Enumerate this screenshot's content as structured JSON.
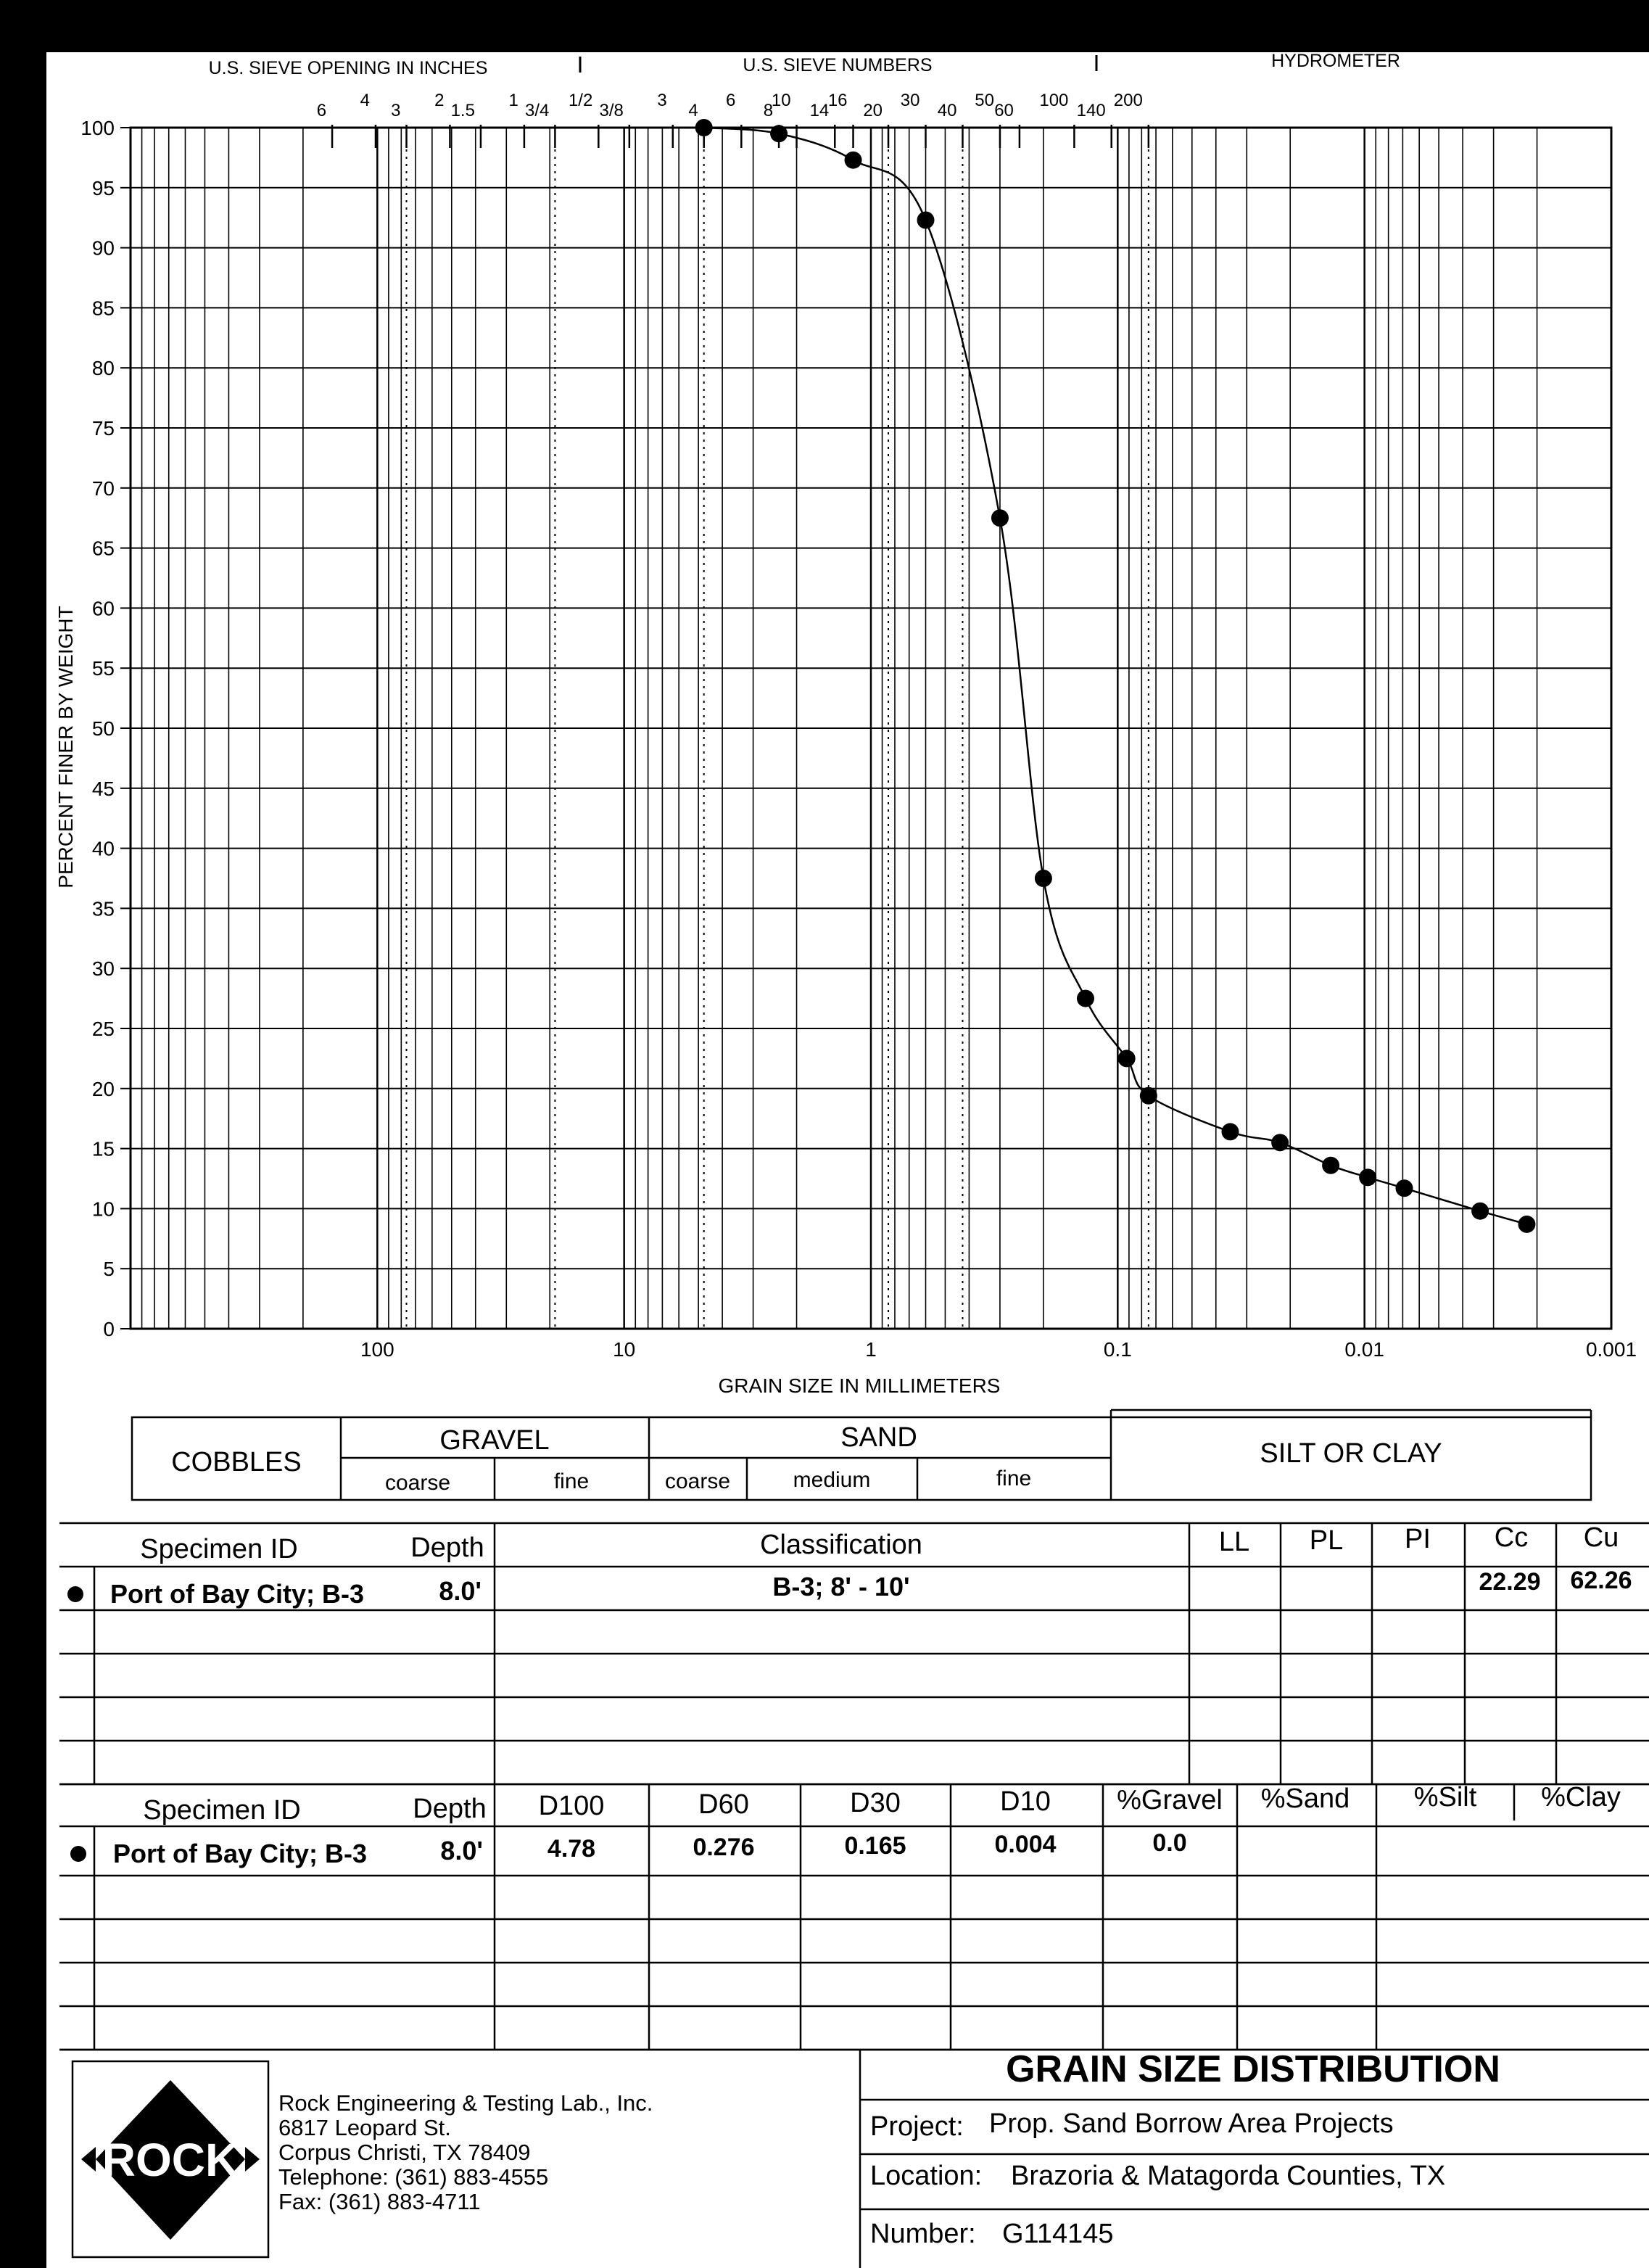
{
  "chart_data": {
    "type": "scatter",
    "x_scale": "log-reversed",
    "xlim": [
      1000,
      0.001
    ],
    "ylim": [
      0,
      100
    ],
    "grid": true,
    "legend": "none",
    "top_labels": {
      "inches_header": "U.S. SIEVE OPENING IN INCHES",
      "numbers_header": "U.S. SIEVE NUMBERS",
      "hydrometer_header": "HYDROMETER",
      "inch_sieves": [
        {
          "label": "6",
          "mm": 152.4
        },
        {
          "label": "4",
          "mm": 101.6
        },
        {
          "label": "3",
          "mm": 76.2
        },
        {
          "label": "2",
          "mm": 50.8
        },
        {
          "label": "1.5",
          "mm": 38.1
        },
        {
          "label": "1",
          "mm": 25.4
        },
        {
          "label": "3/4",
          "mm": 19.05
        },
        {
          "label": "1/2",
          "mm": 12.7
        },
        {
          "label": "3/8",
          "mm": 9.525
        },
        {
          "label": "3",
          "mm": 6.35
        }
      ],
      "number_sieves": [
        {
          "label": "4",
          "mm": 4.75
        },
        {
          "label": "6",
          "mm": 3.35
        },
        {
          "label": "8",
          "mm": 2.36
        },
        {
          "label": "10",
          "mm": 2.0
        },
        {
          "label": "14",
          "mm": 1.4
        },
        {
          "label": "16",
          "mm": 1.18
        },
        {
          "label": "20",
          "mm": 0.85
        },
        {
          "label": "30",
          "mm": 0.6
        },
        {
          "label": "40",
          "mm": 0.425
        },
        {
          "label": "50",
          "mm": 0.3
        },
        {
          "label": "60",
          "mm": 0.25
        },
        {
          "label": "100",
          "mm": 0.15
        },
        {
          "label": "140",
          "mm": 0.106
        },
        {
          "label": "200",
          "mm": 0.075
        }
      ]
    },
    "x_tick_labels": [
      {
        "label": "100",
        "mm": 100
      },
      {
        "label": "10",
        "mm": 10
      },
      {
        "label": "1",
        "mm": 1
      },
      {
        "label": "0.1",
        "mm": 0.1
      },
      {
        "label": "0.01",
        "mm": 0.01
      },
      {
        "label": "0.001",
        "mm": 0.001
      }
    ],
    "y_ticks": [
      0,
      5,
      10,
      15,
      20,
      25,
      30,
      35,
      40,
      45,
      50,
      55,
      60,
      65,
      70,
      75,
      80,
      85,
      90,
      95,
      100
    ],
    "xlabel": "GRAIN SIZE IN MILLIMETERS",
    "ylabel": "PERCENT FINER BY WEIGHT",
    "series": [
      {
        "marker": "filled-circle",
        "color": "#000000",
        "points": [
          {
            "x": 4.75,
            "y": 100.0
          },
          {
            "x": 2.36,
            "y": 99.5
          },
          {
            "x": 1.18,
            "y": 97.3
          },
          {
            "x": 0.6,
            "y": 92.3
          },
          {
            "x": 0.3,
            "y": 67.5
          },
          {
            "x": 0.2,
            "y": 37.5
          },
          {
            "x": 0.135,
            "y": 27.5
          },
          {
            "x": 0.092,
            "y": 22.5
          },
          {
            "x": 0.075,
            "y": 19.4
          },
          {
            "x": 0.035,
            "y": 16.4
          },
          {
            "x": 0.022,
            "y": 15.5
          },
          {
            "x": 0.0137,
            "y": 13.6
          },
          {
            "x": 0.0097,
            "y": 12.6
          },
          {
            "x": 0.0069,
            "y": 11.7
          },
          {
            "x": 0.0034,
            "y": 9.8
          },
          {
            "x": 0.0022,
            "y": 8.7
          }
        ]
      }
    ]
  },
  "classification_bar": {
    "cobbles": "COBBLES",
    "gravel": "GRAVEL",
    "gravel_coarse": "coarse",
    "gravel_fine": "fine",
    "sand": "SAND",
    "sand_coarse": "coarse",
    "sand_medium": "medium",
    "sand_fine": "fine",
    "silt_clay": "SILT OR CLAY"
  },
  "table1": {
    "headers": [
      "Specimen ID",
      "Depth",
      "Classification",
      "LL",
      "PL",
      "PI",
      "Cc",
      "Cu"
    ],
    "row": {
      "specimen": "Port of Bay City; B-3",
      "depth": "8.0'",
      "classification": "B-3; 8' - 10'",
      "ll": "",
      "pl": "",
      "pi": "",
      "cc": "22.29",
      "cu": "62.26"
    }
  },
  "table2": {
    "headers": [
      "Specimen ID",
      "Depth",
      "D100",
      "D60",
      "D30",
      "D10",
      "%Gravel",
      "%Sand",
      "%Silt",
      "%Clay"
    ],
    "row": {
      "specimen": "Port of Bay City; B-3",
      "depth": "8.0'",
      "d100": "4.78",
      "d60": "0.276",
      "d30": "0.165",
      "d10": "0.004",
      "gravel": "0.0",
      "sand": "",
      "silt": "",
      "clay": ""
    }
  },
  "footer": {
    "logo_text": "ROCK",
    "company": "Rock Engineering & Testing Lab., Inc.",
    "street": "6817 Leopard St.",
    "city": "Corpus Christi, TX 78409",
    "telephone": "Telephone:  (361) 883-4555",
    "fax": "Fax:  (361) 883-4711",
    "report_title": "GRAIN SIZE DISTRIBUTION",
    "project_label": "Project:",
    "project": "Prop. Sand Borrow Area Projects",
    "location_label": "Location:",
    "location": "Brazoria & Matagorda Counties, TX",
    "number_label": "Number:",
    "number": "G114145"
  }
}
